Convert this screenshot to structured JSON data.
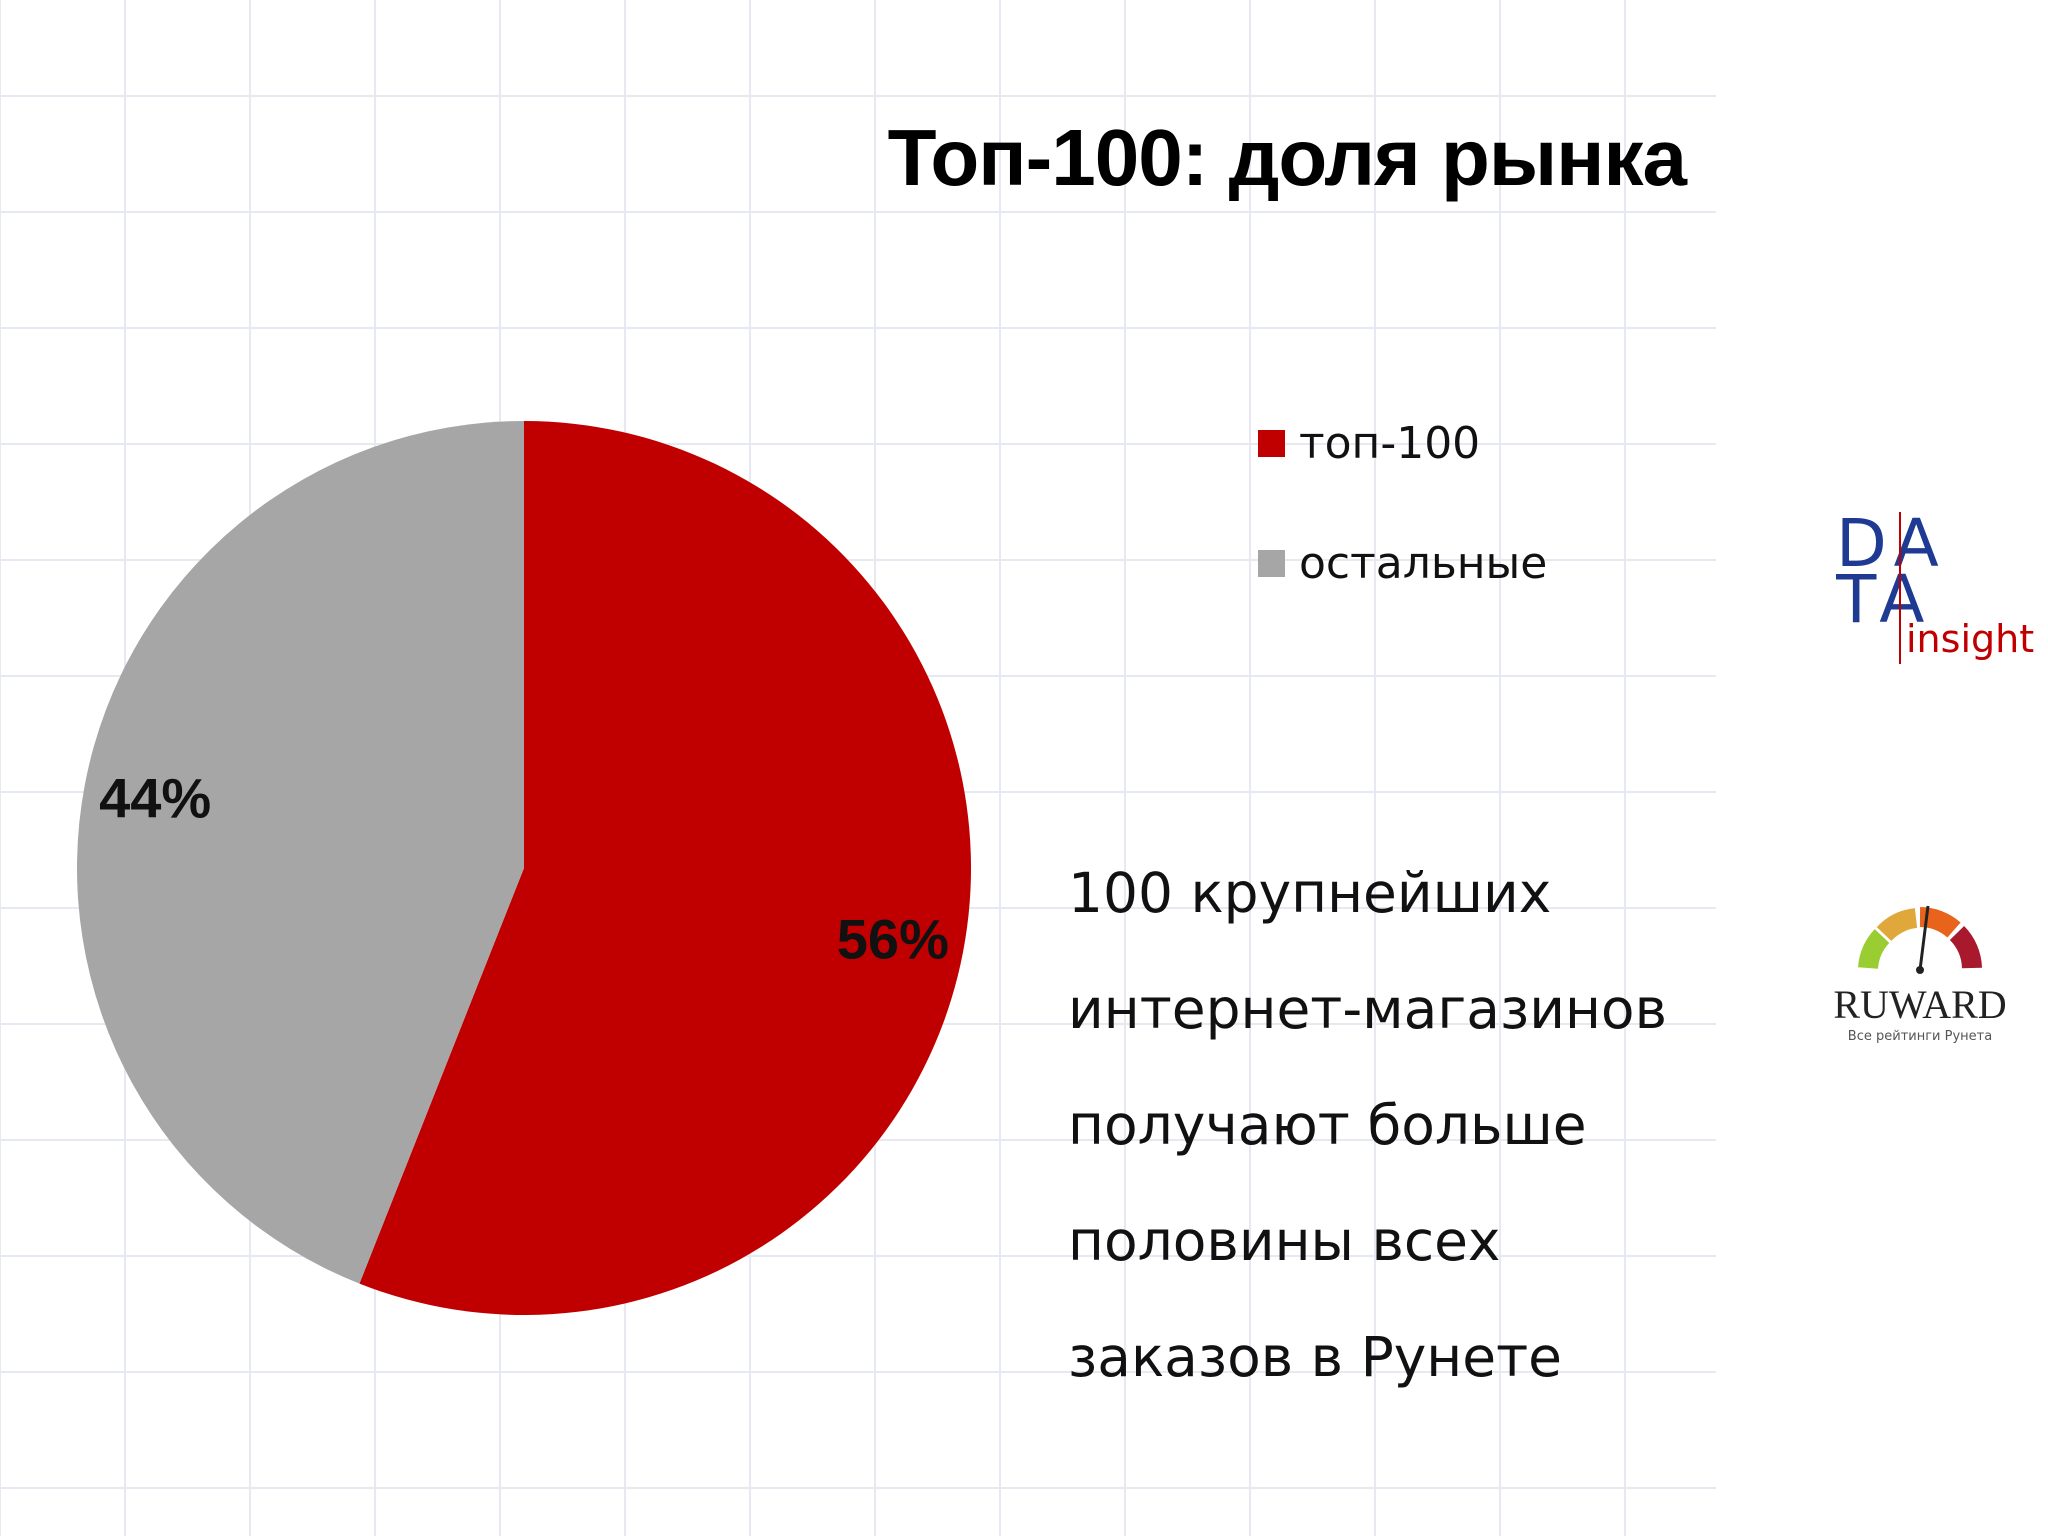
{
  "title": "Топ-100: доля рынка",
  "chart_data": {
    "type": "pie",
    "slices": [
      {
        "name": "топ-100",
        "value": 56,
        "label": "56%",
        "color": "#C00000"
      },
      {
        "name": "остальные",
        "value": 44,
        "label": "44%",
        "color": "#A6A6A6"
      }
    ],
    "legend_position": "right"
  },
  "note_lines": [
    "100 крупнейших",
    "интернет-магазинов",
    "получают больше",
    "половины всех",
    "заказов в Рунете"
  ],
  "logos": {
    "data_insight": {
      "line1": "DA",
      "line2": "TA",
      "sub": "insight"
    },
    "ruward": {
      "name": "RUWARD",
      "tagline": "Все рейтинги Рунета"
    }
  },
  "colors": {
    "accent_red": "#C00000",
    "gray": "#A6A6A6",
    "grid": "#E6E9F2",
    "data_blue": "#1F3A93"
  }
}
